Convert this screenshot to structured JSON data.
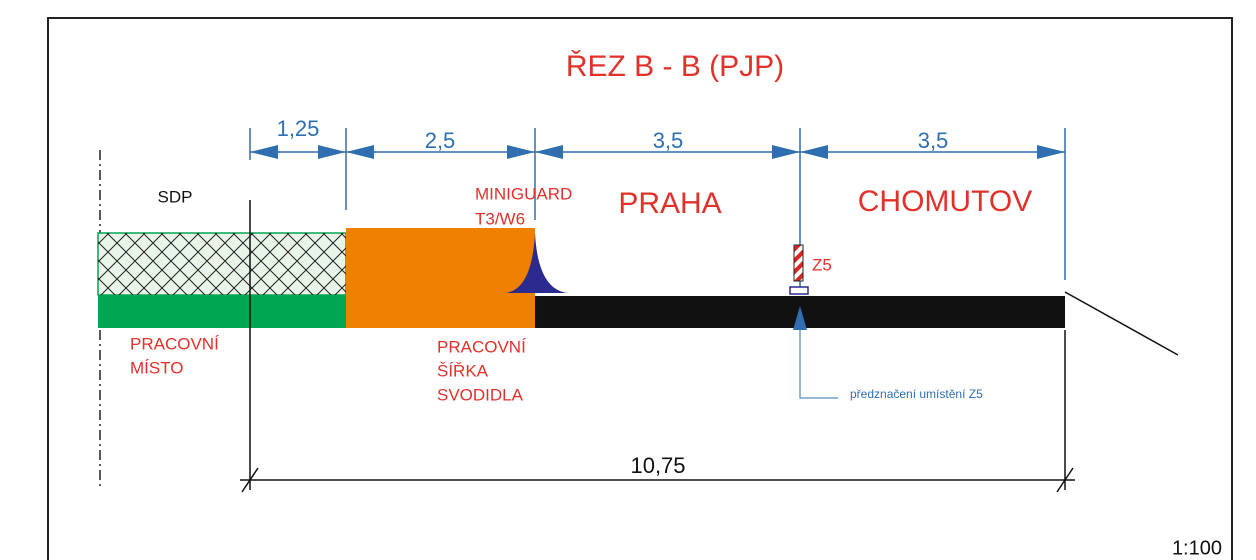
{
  "title": "ŘEZ B - B (PJP)",
  "dimensions": [
    "1,25",
    "2,5",
    "3,5",
    "3,5"
  ],
  "total_dimension": "10,75",
  "labels": {
    "sdp": "SDP",
    "miniguard_1": "MINIGUARD",
    "miniguard_2": "T3/W6",
    "praha": "PRAHA",
    "chomutov": "CHOMUTOV",
    "z5": "Z5",
    "pracovni_misto": [
      "PRACOVNÍ",
      "MÍSTO"
    ],
    "pracovni_sirka": [
      "PRACOVNÍ",
      "ŠÍŘKA",
      "SVODIDLA"
    ],
    "z5_note": "předznačení umístění Z5"
  },
  "scale": "1:100"
}
